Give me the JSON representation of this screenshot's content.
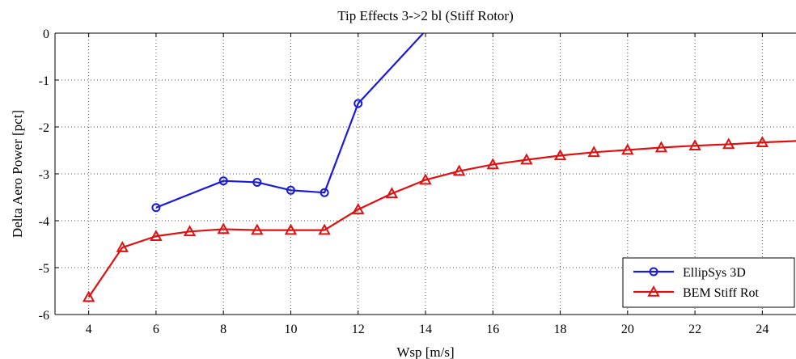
{
  "chart_data": {
    "type": "line",
    "title": "Tip Effects 3->2 bl (Stiff Rotor)",
    "xlabel": "Wsp  [m/s]",
    "ylabel": "Delta Aero Power  [pct]",
    "xlim": [
      3,
      25
    ],
    "ylim": [
      -6,
      0
    ],
    "xticks": [
      4,
      6,
      8,
      10,
      12,
      14,
      16,
      18,
      20,
      22,
      24
    ],
    "yticks": [
      0,
      -1,
      -2,
      -3,
      -4,
      -5,
      -6
    ],
    "grid": true,
    "legend_position": "bottom-right",
    "series": [
      {
        "name": "EllipSys 3D",
        "color": "#1a1adb",
        "marker": "circle",
        "x": [
          6,
          8,
          9,
          10,
          11,
          12,
          14
        ],
        "y": [
          -3.72,
          -3.15,
          -3.18,
          -3.35,
          -3.4,
          -1.5,
          0.05
        ],
        "marked": [
          true,
          true,
          true,
          true,
          true,
          true,
          false
        ]
      },
      {
        "name": "BEM Stiff Rot",
        "color": "#e01010",
        "marker": "triangle",
        "x": [
          4,
          5,
          6,
          7,
          8,
          9,
          10,
          11,
          12,
          13,
          14,
          15,
          16,
          17,
          18,
          19,
          20,
          21,
          22,
          23,
          24,
          25
        ],
        "y": [
          -5.63,
          -4.57,
          -4.33,
          -4.23,
          -4.18,
          -4.2,
          -4.2,
          -4.2,
          -3.76,
          -3.42,
          -3.13,
          -2.94,
          -2.8,
          -2.7,
          -2.61,
          -2.54,
          -2.49,
          -2.44,
          -2.4,
          -2.37,
          -2.33,
          -2.3
        ],
        "marked": [
          true,
          true,
          true,
          true,
          true,
          true,
          true,
          true,
          true,
          true,
          true,
          true,
          true,
          true,
          true,
          true,
          true,
          true,
          true,
          true,
          true,
          false
        ]
      }
    ]
  }
}
